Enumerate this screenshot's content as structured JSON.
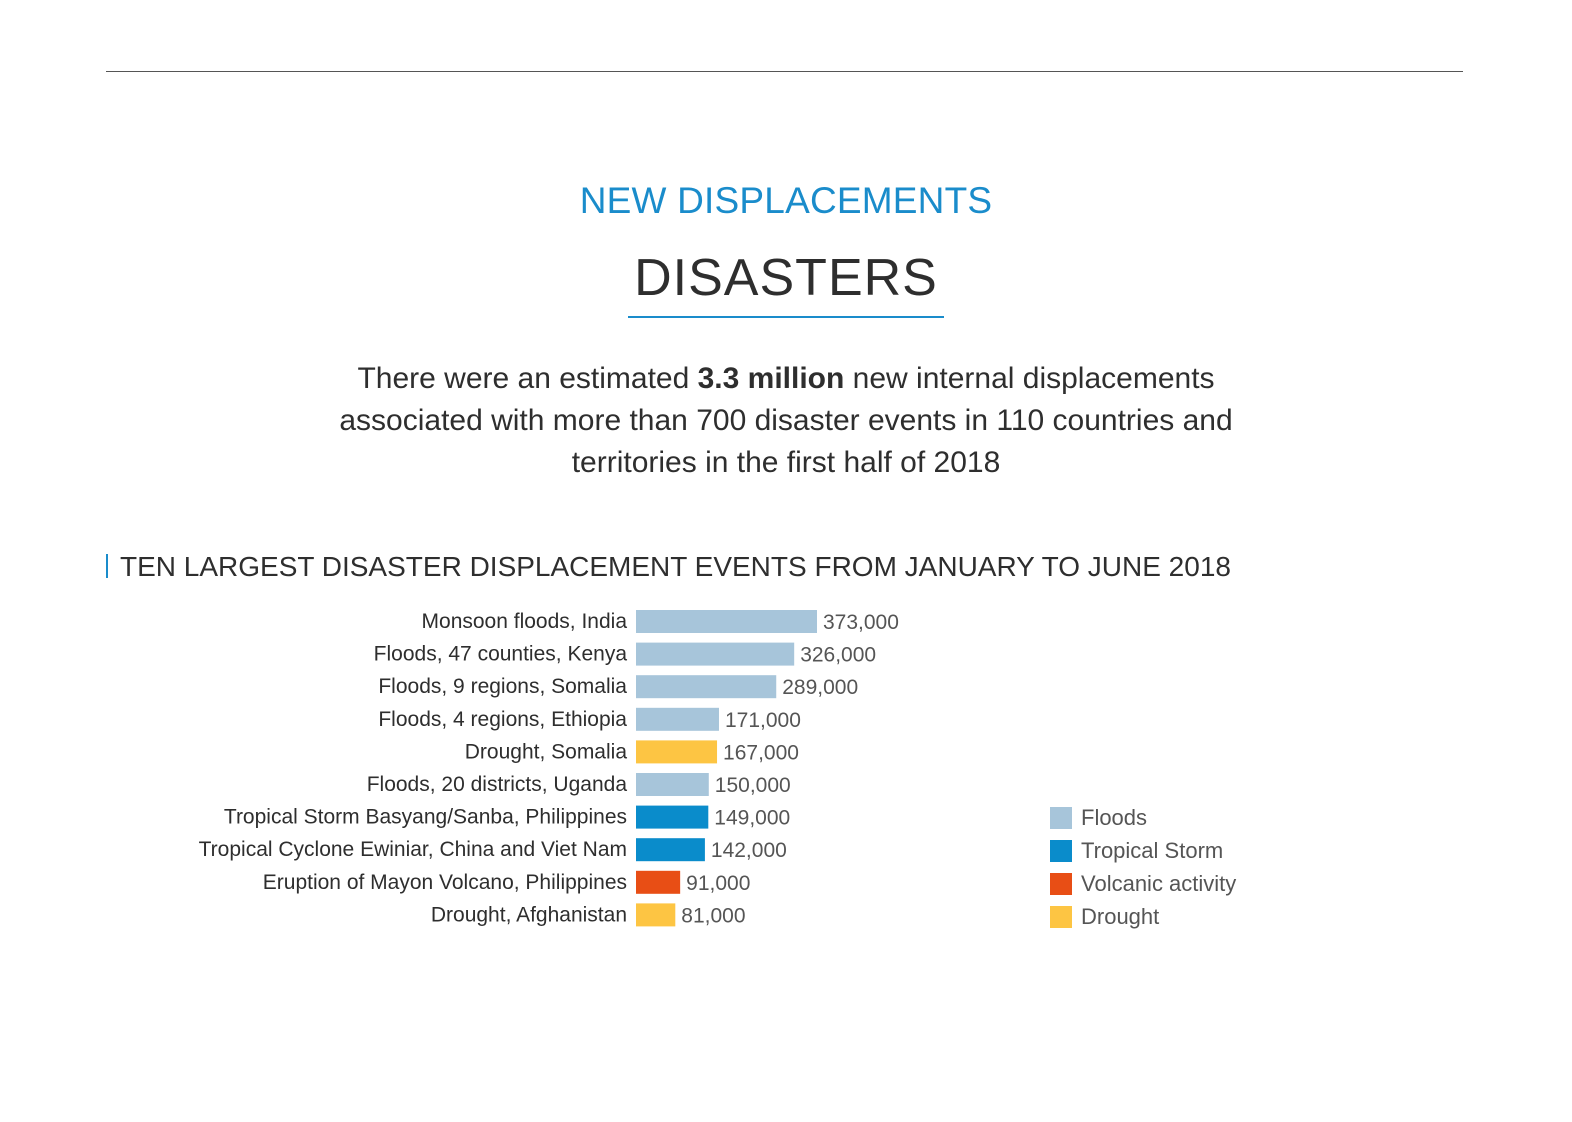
{
  "header": {
    "kicker": "NEW DISPLACEMENTS",
    "title": "DISASTERS"
  },
  "intro": {
    "before": "There were an estimated ",
    "highlight": "3.3 million",
    "after": " new internal displacements associated with more than 700 disaster events in 110 countries and territories in the first half of 2018"
  },
  "section": {
    "heading": "TEN LARGEST DISASTER DISPLACEMENT EVENTS FROM JANUARY TO JUNE 2018"
  },
  "colors": {
    "accent": "#1a8ccb",
    "Floods": "#a7c5da",
    "Tropical Storm": "#0a8ccb",
    "Volcanic activity": "#e84e15",
    "Drought": "#fdc543"
  },
  "chart_data": {
    "type": "bar",
    "orientation": "horizontal",
    "title": "TEN LARGEST DISASTER DISPLACEMENT EVENTS FROM JANUARY TO JUNE 2018",
    "categories": [
      "Monsoon floods, India",
      "Floods, 47 counties, Kenya",
      "Floods, 9 regions, Somalia",
      "Floods, 4 regions, Ethiopia",
      "Drought, Somalia",
      "Floods, 20 districts, Uganda",
      "Tropical Storm Basyang/Sanba, Philippines",
      "Tropical Cyclone Ewiniar, China and Viet Nam",
      "Eruption of Mayon Volcano, Philippines",
      "Drought, Afghanistan"
    ],
    "values": [
      373000,
      326000,
      289000,
      171000,
      167000,
      150000,
      149000,
      142000,
      91000,
      81000
    ],
    "value_labels": [
      "373,000",
      "326,000",
      "289,000",
      "171,000",
      "167,000",
      "150,000",
      "149,000",
      "142,000",
      "91,000",
      "81,000"
    ],
    "hazard": [
      "Floods",
      "Floods",
      "Floods",
      "Floods",
      "Drought",
      "Floods",
      "Tropical Storm",
      "Tropical Storm",
      "Volcanic activity",
      "Drought"
    ],
    "legend": [
      "Floods",
      "Tropical Storm",
      "Volcanic activity",
      "Drought"
    ],
    "legend_position": "right",
    "grid": false,
    "xlim": [
      0,
      373000
    ]
  }
}
